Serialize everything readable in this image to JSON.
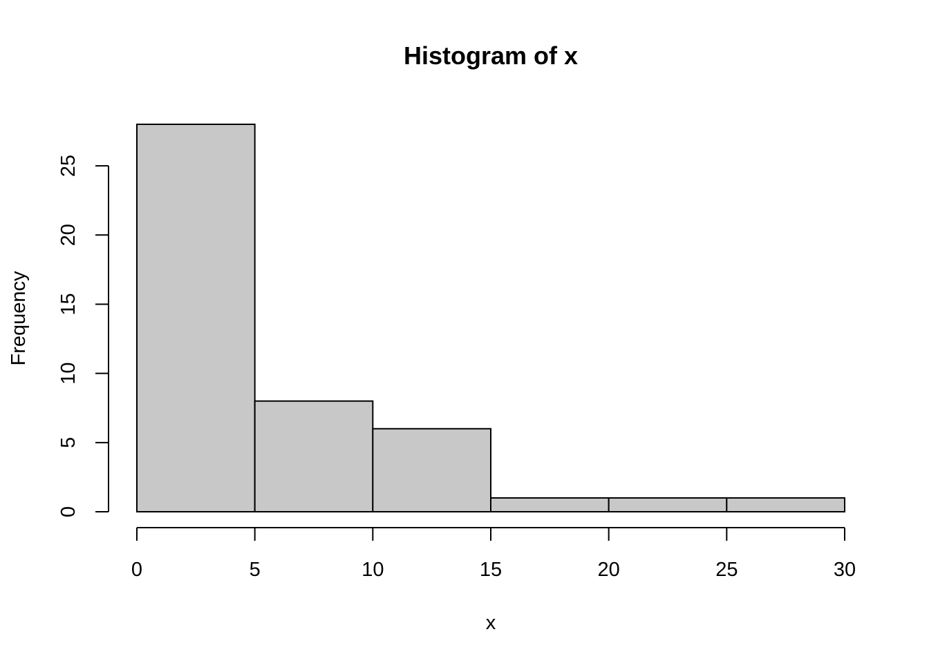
{
  "chart_data": {
    "type": "bar",
    "title": "Histogram of x",
    "xlabel": "x",
    "ylabel": "Frequency",
    "bins": [
      {
        "from": 0,
        "to": 5,
        "count": 28
      },
      {
        "from": 5,
        "to": 10,
        "count": 8
      },
      {
        "from": 10,
        "to": 15,
        "count": 6
      },
      {
        "from": 15,
        "to": 20,
        "count": 1
      },
      {
        "from": 20,
        "to": 25,
        "count": 1
      },
      {
        "from": 25,
        "to": 30,
        "count": 1
      }
    ],
    "xticks": [
      0,
      5,
      10,
      15,
      20,
      25,
      30
    ],
    "yticks": [
      0,
      5,
      10,
      15,
      20,
      25
    ],
    "xlim": [
      0,
      30
    ],
    "ylim": [
      0,
      28
    ],
    "grid": false,
    "bar_color": "#c8c8c8",
    "border_color": "#000000"
  }
}
